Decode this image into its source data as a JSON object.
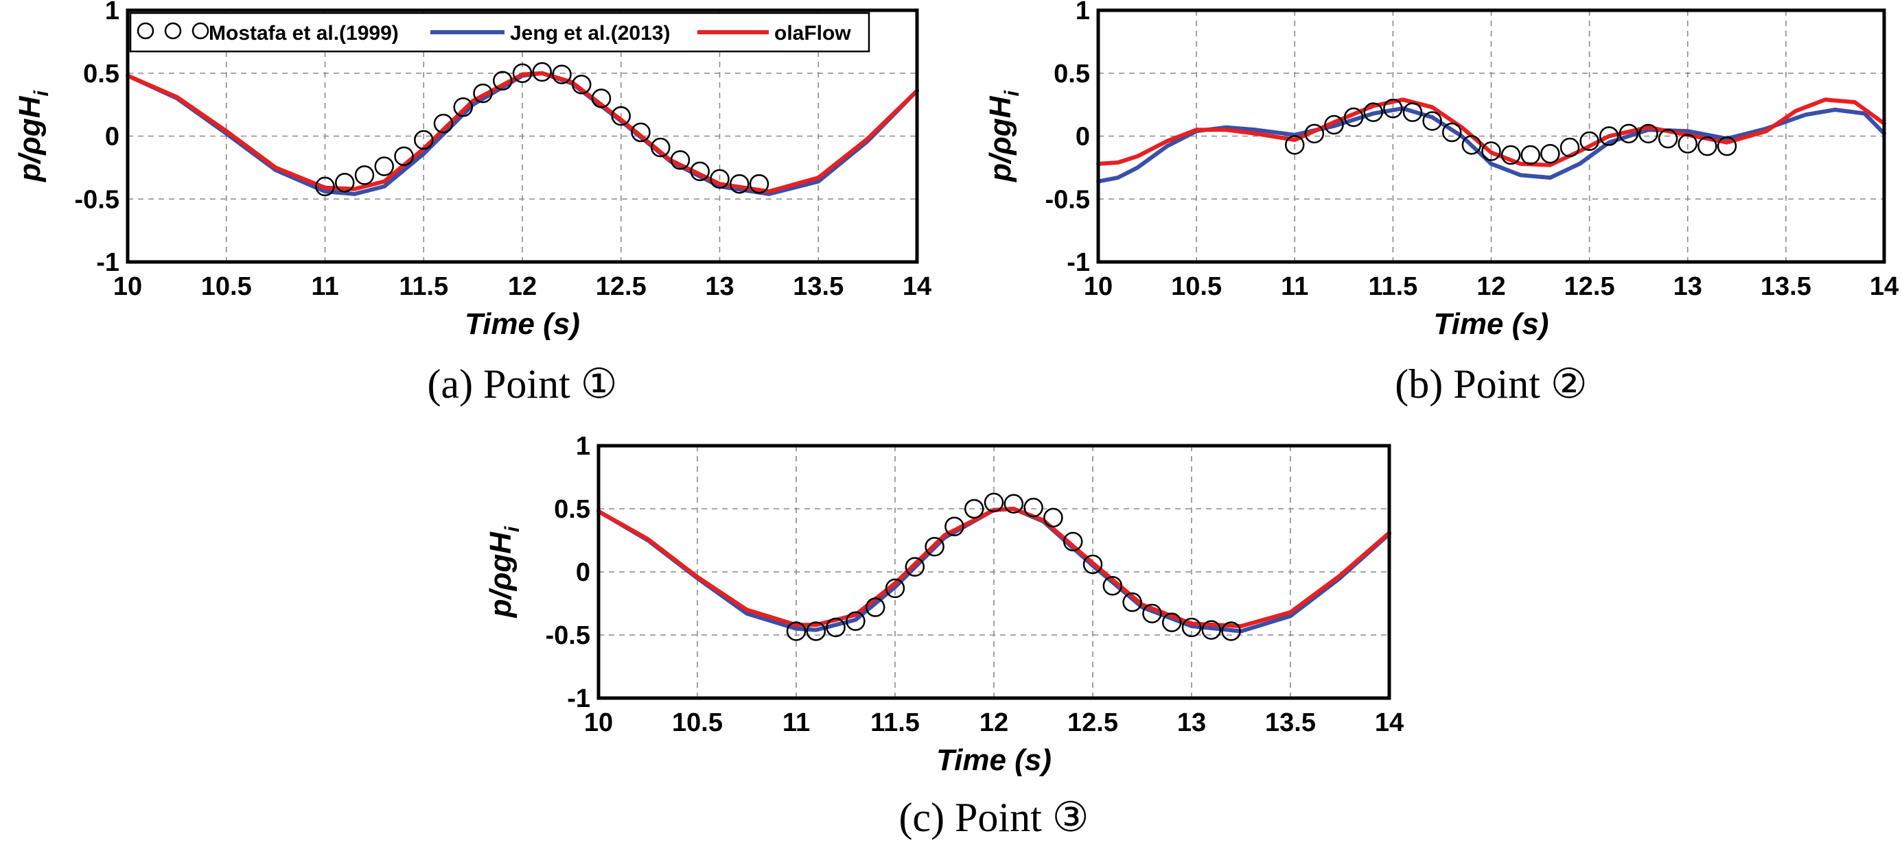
{
  "chart_data": [
    {
      "type": "line",
      "caption": "(a)  Point ①",
      "xlabel": "Time (s)",
      "ylabel": "p/ρgH",
      "ylabel_sub": "i",
      "xlim": [
        10,
        14
      ],
      "ylim": [
        -1,
        1
      ],
      "x_ticks": [
        "10",
        "10.5",
        "11",
        "11.5",
        "12",
        "12.5",
        "13",
        "13.5",
        "14"
      ],
      "y_ticks": [
        "1",
        "0.5",
        "0",
        "-0.5",
        "-1"
      ],
      "grid": true,
      "legend": {
        "position": "top",
        "entries": [
          "Mostafa et al.(1999)",
          "Jeng et al.(2013)",
          "olaFlow"
        ]
      },
      "series": [
        {
          "name": "Mostafa et al.(1999)",
          "style": "markers",
          "color": "#000000",
          "x": [
            11.0,
            11.1,
            11.2,
            11.3,
            11.4,
            11.5,
            11.6,
            11.7,
            11.8,
            11.9,
            12.0,
            12.1,
            12.2,
            12.3,
            12.4,
            12.5,
            12.6,
            12.7,
            12.8,
            12.9,
            13.0,
            13.1,
            13.2
          ],
          "y": [
            -0.4,
            -0.37,
            -0.31,
            -0.24,
            -0.16,
            -0.03,
            0.1,
            0.23,
            0.34,
            0.44,
            0.5,
            0.51,
            0.49,
            0.41,
            0.3,
            0.16,
            0.03,
            -0.09,
            -0.19,
            -0.28,
            -0.34,
            -0.38,
            -0.38
          ]
        },
        {
          "name": "Jeng et al.(2013)",
          "style": "line",
          "color": "#3a4fa8",
          "x": [
            10.0,
            10.25,
            10.5,
            10.75,
            11.0,
            11.15,
            11.3,
            11.5,
            11.75,
            12.0,
            12.1,
            12.25,
            12.5,
            12.75,
            13.0,
            13.25,
            13.5,
            13.75,
            14.0
          ],
          "y": [
            0.48,
            0.3,
            0.02,
            -0.27,
            -0.44,
            -0.46,
            -0.4,
            -0.14,
            0.25,
            0.48,
            0.5,
            0.42,
            0.12,
            -0.2,
            -0.4,
            -0.46,
            -0.36,
            -0.04,
            0.36
          ]
        },
        {
          "name": "olaFlow",
          "style": "line",
          "color": "#e82020",
          "x": [
            10.0,
            10.25,
            10.5,
            10.75,
            11.0,
            11.15,
            11.3,
            11.5,
            11.75,
            12.0,
            12.1,
            12.25,
            12.5,
            12.75,
            13.0,
            13.25,
            13.5,
            13.75,
            14.0
          ],
          "y": [
            0.48,
            0.31,
            0.04,
            -0.25,
            -0.41,
            -0.42,
            -0.36,
            -0.1,
            0.28,
            0.49,
            0.5,
            0.43,
            0.13,
            -0.19,
            -0.38,
            -0.44,
            -0.33,
            -0.02,
            0.36
          ]
        }
      ]
    },
    {
      "type": "line",
      "caption": "(b)  Point ②",
      "xlabel": "Time (s)",
      "ylabel": "p/ρgH",
      "ylabel_sub": "i",
      "xlim": [
        10,
        14
      ],
      "ylim": [
        -1,
        1
      ],
      "x_ticks": [
        "10",
        "10.5",
        "11",
        "11.5",
        "12",
        "12.5",
        "13",
        "13.5",
        "14"
      ],
      "y_ticks": [
        "1",
        "0.5",
        "0",
        "-0.5",
        "-1"
      ],
      "grid": true,
      "series": [
        {
          "name": "Mostafa et al.(1999)",
          "style": "markers",
          "color": "#000000",
          "x": [
            11.0,
            11.1,
            11.2,
            11.3,
            11.4,
            11.5,
            11.6,
            11.7,
            11.8,
            11.9,
            12.0,
            12.1,
            12.2,
            12.3,
            12.4,
            12.5,
            12.6,
            12.7,
            12.8,
            12.9,
            13.0,
            13.1,
            13.2
          ],
          "y": [
            -0.07,
            0.02,
            0.09,
            0.15,
            0.19,
            0.22,
            0.19,
            0.12,
            0.03,
            -0.07,
            -0.12,
            -0.15,
            -0.15,
            -0.14,
            -0.09,
            -0.04,
            0.0,
            0.02,
            0.02,
            -0.02,
            -0.06,
            -0.08,
            -0.08
          ]
        },
        {
          "name": "Jeng et al.(2013)",
          "style": "line",
          "color": "#3a4fa8",
          "x": [
            10.0,
            10.1,
            10.2,
            10.35,
            10.5,
            10.65,
            10.8,
            11.0,
            11.2,
            11.4,
            11.55,
            11.7,
            11.85,
            12.0,
            12.15,
            12.3,
            12.45,
            12.6,
            12.8,
            13.0,
            13.2,
            13.4,
            13.6,
            13.75,
            13.9,
            14.0
          ],
          "y": [
            -0.36,
            -0.33,
            -0.25,
            -0.08,
            0.04,
            0.07,
            0.05,
            0.01,
            0.08,
            0.18,
            0.22,
            0.15,
            0.0,
            -0.22,
            -0.31,
            -0.33,
            -0.22,
            -0.05,
            0.05,
            0.04,
            -0.02,
            0.06,
            0.17,
            0.21,
            0.18,
            0.02
          ]
        },
        {
          "name": "olaFlow",
          "style": "line",
          "color": "#e82020",
          "x": [
            10.0,
            10.1,
            10.2,
            10.35,
            10.5,
            10.65,
            10.8,
            11.0,
            11.2,
            11.4,
            11.55,
            11.7,
            11.85,
            12.0,
            12.15,
            12.3,
            12.45,
            12.6,
            12.8,
            13.0,
            13.2,
            13.4,
            13.55,
            13.7,
            13.85,
            14.0
          ],
          "y": [
            -0.22,
            -0.21,
            -0.16,
            -0.04,
            0.05,
            0.05,
            0.02,
            -0.03,
            0.11,
            0.24,
            0.29,
            0.23,
            0.07,
            -0.13,
            -0.22,
            -0.23,
            -0.12,
            0.0,
            0.07,
            0.01,
            -0.05,
            0.04,
            0.2,
            0.29,
            0.27,
            0.1
          ]
        }
      ]
    },
    {
      "type": "line",
      "caption": "(c)  Point ③",
      "xlabel": "Time (s)",
      "ylabel": "p/ρgH",
      "ylabel_sub": "i",
      "xlim": [
        10,
        14
      ],
      "ylim": [
        -1,
        1
      ],
      "x_ticks": [
        "10",
        "10.5",
        "11",
        "11.5",
        "12",
        "12.5",
        "13",
        "13.5",
        "14"
      ],
      "y_ticks": [
        "1",
        "0.5",
        "0",
        "-0.5",
        "-1"
      ],
      "grid": true,
      "series": [
        {
          "name": "Mostafa et al.(1999)",
          "style": "markers",
          "color": "#000000",
          "x": [
            11.0,
            11.1,
            11.2,
            11.3,
            11.4,
            11.5,
            11.6,
            11.7,
            11.8,
            11.9,
            12.0,
            12.1,
            12.2,
            12.3,
            12.4,
            12.5,
            12.6,
            12.7,
            12.8,
            12.9,
            13.0,
            13.1,
            13.2
          ],
          "y": [
            -0.47,
            -0.47,
            -0.44,
            -0.39,
            -0.28,
            -0.13,
            0.04,
            0.2,
            0.36,
            0.5,
            0.55,
            0.54,
            0.51,
            0.43,
            0.24,
            0.06,
            -0.11,
            -0.24,
            -0.33,
            -0.4,
            -0.44,
            -0.46,
            -0.47
          ]
        },
        {
          "name": "Jeng et al.(2013)",
          "style": "line",
          "color": "#3a4fa8",
          "x": [
            10.0,
            10.25,
            10.5,
            10.75,
            11.0,
            11.1,
            11.3,
            11.5,
            11.75,
            12.0,
            12.1,
            12.25,
            12.5,
            12.75,
            13.0,
            13.25,
            13.5,
            13.75,
            14.0
          ],
          "y": [
            0.48,
            0.25,
            -0.05,
            -0.33,
            -0.45,
            -0.46,
            -0.38,
            -0.12,
            0.27,
            0.49,
            0.5,
            0.4,
            0.05,
            -0.28,
            -0.43,
            -0.47,
            -0.35,
            -0.05,
            0.3
          ]
        },
        {
          "name": "olaFlow",
          "style": "line",
          "color": "#e82020",
          "x": [
            10.0,
            10.25,
            10.5,
            10.75,
            11.0,
            11.1,
            11.3,
            11.5,
            11.75,
            12.0,
            12.1,
            12.25,
            12.5,
            12.75,
            13.0,
            13.25,
            13.5,
            13.75,
            14.0
          ],
          "y": [
            0.48,
            0.26,
            -0.04,
            -0.3,
            -0.42,
            -0.42,
            -0.34,
            -0.09,
            0.29,
            0.49,
            0.5,
            0.41,
            0.07,
            -0.26,
            -0.41,
            -0.43,
            -0.32,
            -0.03,
            0.31
          ]
        }
      ]
    }
  ]
}
